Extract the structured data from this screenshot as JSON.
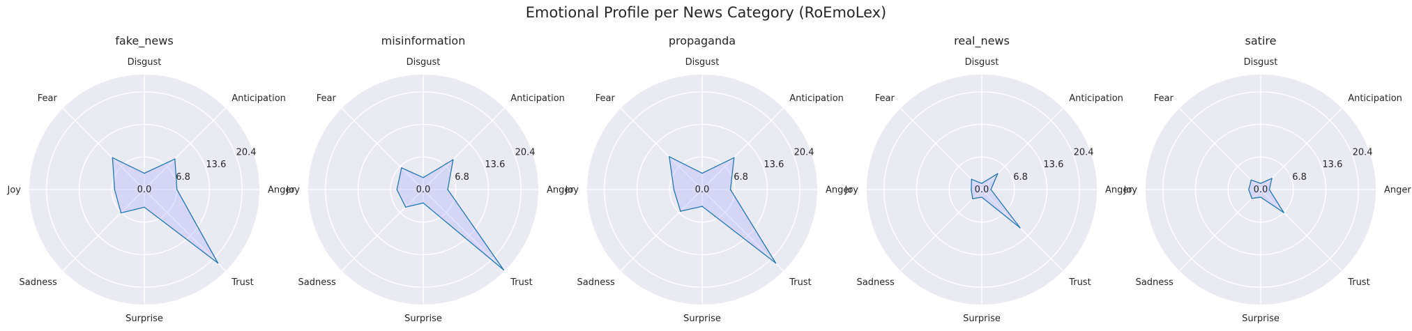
{
  "figure": {
    "title": "Emotional Profile per News Category (RoEmoLex)"
  },
  "colors": {
    "panel_bg": "#EAEAF2",
    "grid": "#FFFFFF",
    "series_line": "#1F77B4",
    "series_fill": "#9999FF",
    "text": "#262626"
  },
  "chart_data": [
    {
      "type": "radar",
      "title": "fake_news",
      "axes": [
        "Anger",
        "Anticipation",
        "Disgust",
        "Fear",
        "Joy",
        "Sadness",
        "Surprise",
        "Trust"
      ],
      "values": [
        6.8,
        9.0,
        3.4,
        9.4,
        6.2,
        6.9,
        3.7,
        21.7
      ],
      "r_ticks": [
        "0.0",
        "6.8",
        "13.6",
        "20.4"
      ],
      "rlim": [
        0,
        24
      ],
      "grid": true
    },
    {
      "type": "radar",
      "title": "misinformation",
      "axes": [
        "Anger",
        "Anticipation",
        "Disgust",
        "Fear",
        "Joy",
        "Sadness",
        "Surprise",
        "Trust"
      ],
      "values": [
        5.1,
        8.8,
        2.5,
        6.4,
        5.5,
        5.2,
        2.8,
        23.7
      ],
      "r_ticks": [
        "0.0",
        "6.8",
        "13.6",
        "20.4"
      ],
      "rlim": [
        0,
        24
      ],
      "grid": true
    },
    {
      "type": "radar",
      "title": "propaganda",
      "axes": [
        "Anger",
        "Anticipation",
        "Disgust",
        "Fear",
        "Joy",
        "Sadness",
        "Surprise",
        "Trust"
      ],
      "values": [
        5.9,
        9.4,
        3.4,
        9.7,
        5.9,
        6.4,
        3.5,
        21.7
      ],
      "r_ticks": [
        "0.0",
        "6.8",
        "13.6",
        "20.4"
      ],
      "rlim": [
        0,
        24
      ],
      "grid": true
    },
    {
      "type": "radar",
      "title": "real_news",
      "axes": [
        "Anger",
        "Anticipation",
        "Disgust",
        "Fear",
        "Joy",
        "Sadness",
        "Surprise",
        "Trust"
      ],
      "values": [
        1.9,
        4.7,
        1.3,
        3.0,
        2.2,
        2.7,
        1.6,
        11.3
      ],
      "r_ticks": [
        "0.0",
        "6.8",
        "13.6",
        "20.4"
      ],
      "rlim": [
        0,
        24
      ],
      "grid": true
    },
    {
      "type": "radar",
      "title": "satire",
      "axes": [
        "Anger",
        "Anticipation",
        "Disgust",
        "Fear",
        "Joy",
        "Sadness",
        "Surprise",
        "Trust"
      ],
      "values": [
        1.8,
        3.3,
        1.3,
        2.8,
        2.5,
        2.6,
        1.6,
        6.8
      ],
      "r_ticks": [
        "0.0",
        "6.8",
        "13.6",
        "20.4"
      ],
      "rlim": [
        0,
        24
      ],
      "grid": true
    }
  ]
}
